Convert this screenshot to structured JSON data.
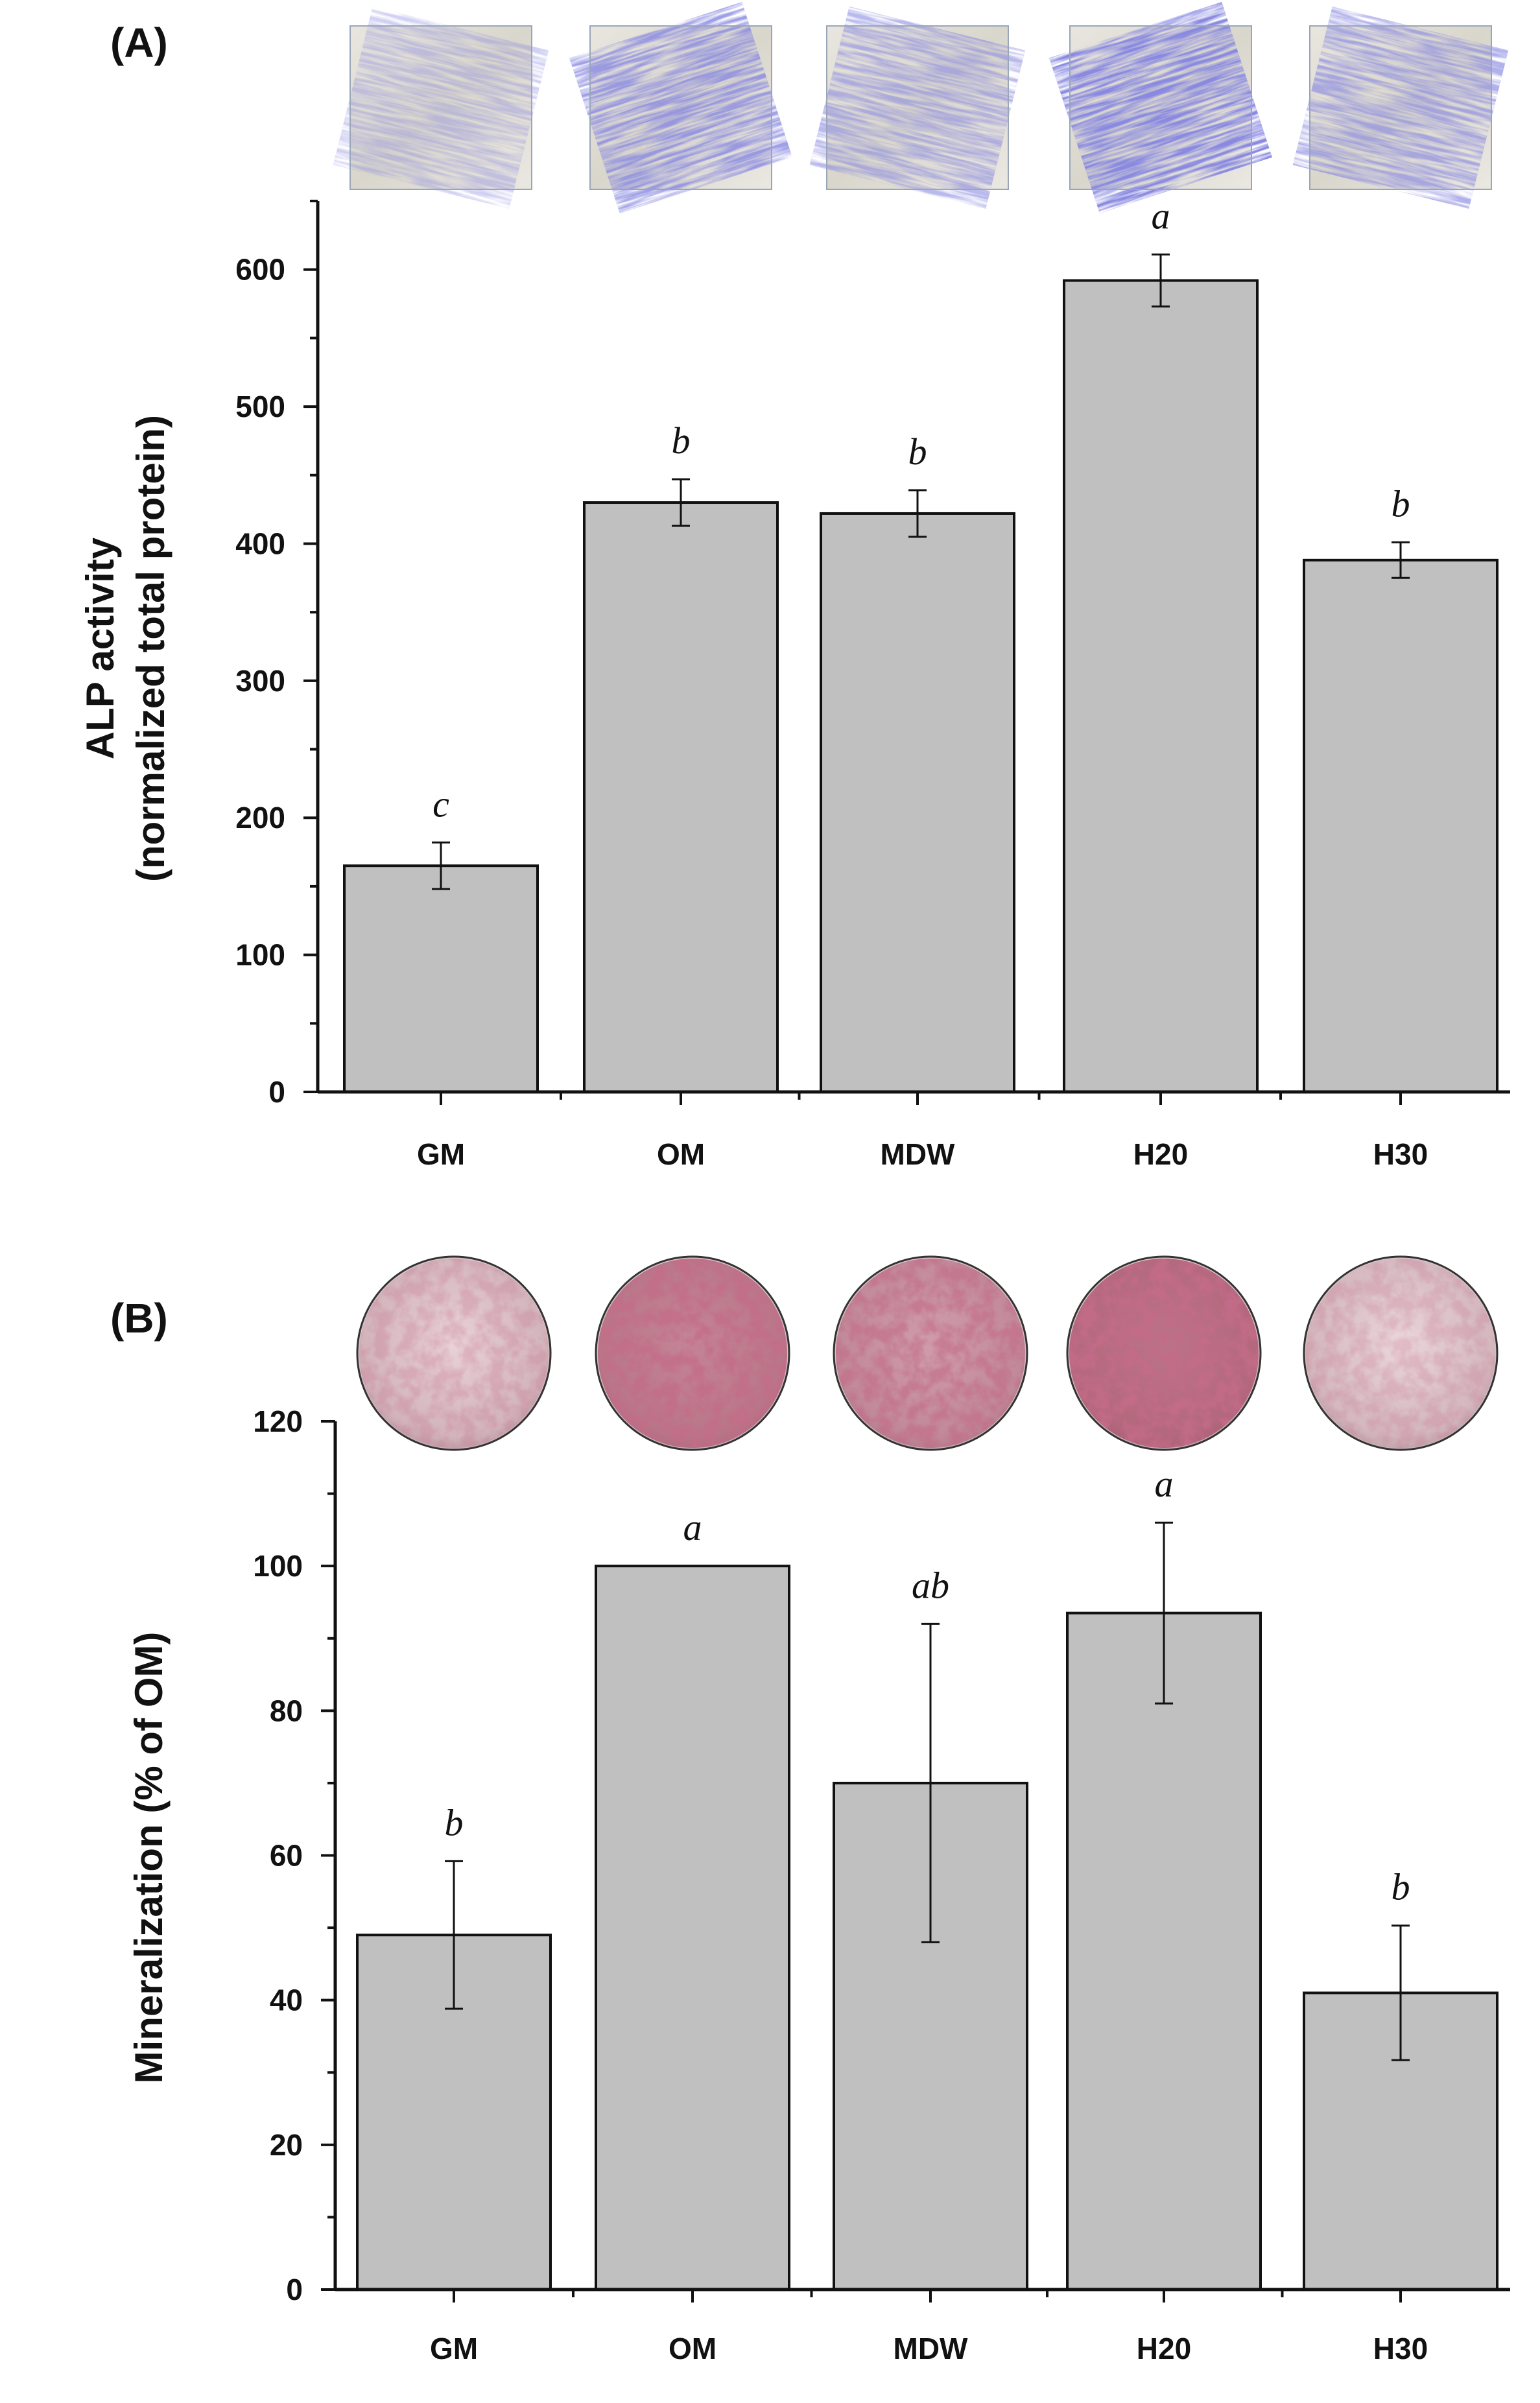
{
  "chart_data": [
    {
      "panel_label": "(A)",
      "type": "bar",
      "categories": [
        "GM",
        "OM",
        "MDW",
        "H20",
        "H30"
      ],
      "values": [
        165,
        430,
        422,
        592,
        388
      ],
      "errors": [
        17,
        17,
        17,
        19,
        13
      ],
      "significance": [
        "c",
        "b",
        "b",
        "a",
        "b"
      ],
      "ylabel_line1": "ALP activity",
      "ylabel_line2": "(normalized total protein)",
      "ylim": [
        0,
        650
      ],
      "yticks": [
        0,
        100,
        200,
        300,
        400,
        500,
        600
      ],
      "images": [
        {
          "name": "GM",
          "kind": "alp-stain",
          "intensity": 0.2
        },
        {
          "name": "OM",
          "kind": "alp-stain",
          "intensity": 0.75
        },
        {
          "name": "MDW",
          "kind": "alp-stain",
          "intensity": 0.45
        },
        {
          "name": "H20",
          "kind": "alp-stain",
          "intensity": 1.0
        },
        {
          "name": "H30",
          "kind": "alp-stain",
          "intensity": 0.55
        }
      ]
    },
    {
      "panel_label": "(B)",
      "type": "bar",
      "categories": [
        "GM",
        "OM",
        "MDW",
        "H20",
        "H30"
      ],
      "values": [
        49,
        100,
        70,
        93.5,
        41
      ],
      "errors": [
        10.2,
        0,
        22,
        12.5,
        9.3
      ],
      "significance": [
        "b",
        "a",
        "ab",
        "a",
        "b"
      ],
      "ylabel": "Mineralization (% of OM)",
      "ylim": [
        0,
        120
      ],
      "yticks": [
        0,
        20,
        40,
        60,
        80,
        100,
        120
      ],
      "images": [
        {
          "name": "GM",
          "kind": "alizarin-well",
          "intensity": 0.15
        },
        {
          "name": "OM",
          "kind": "alizarin-well",
          "intensity": 0.8
        },
        {
          "name": "MDW",
          "kind": "alizarin-well",
          "intensity": 0.6
        },
        {
          "name": "H20",
          "kind": "alizarin-well",
          "intensity": 0.95
        },
        {
          "name": "H30",
          "kind": "alizarin-well",
          "intensity": 0.12
        }
      ]
    }
  ]
}
